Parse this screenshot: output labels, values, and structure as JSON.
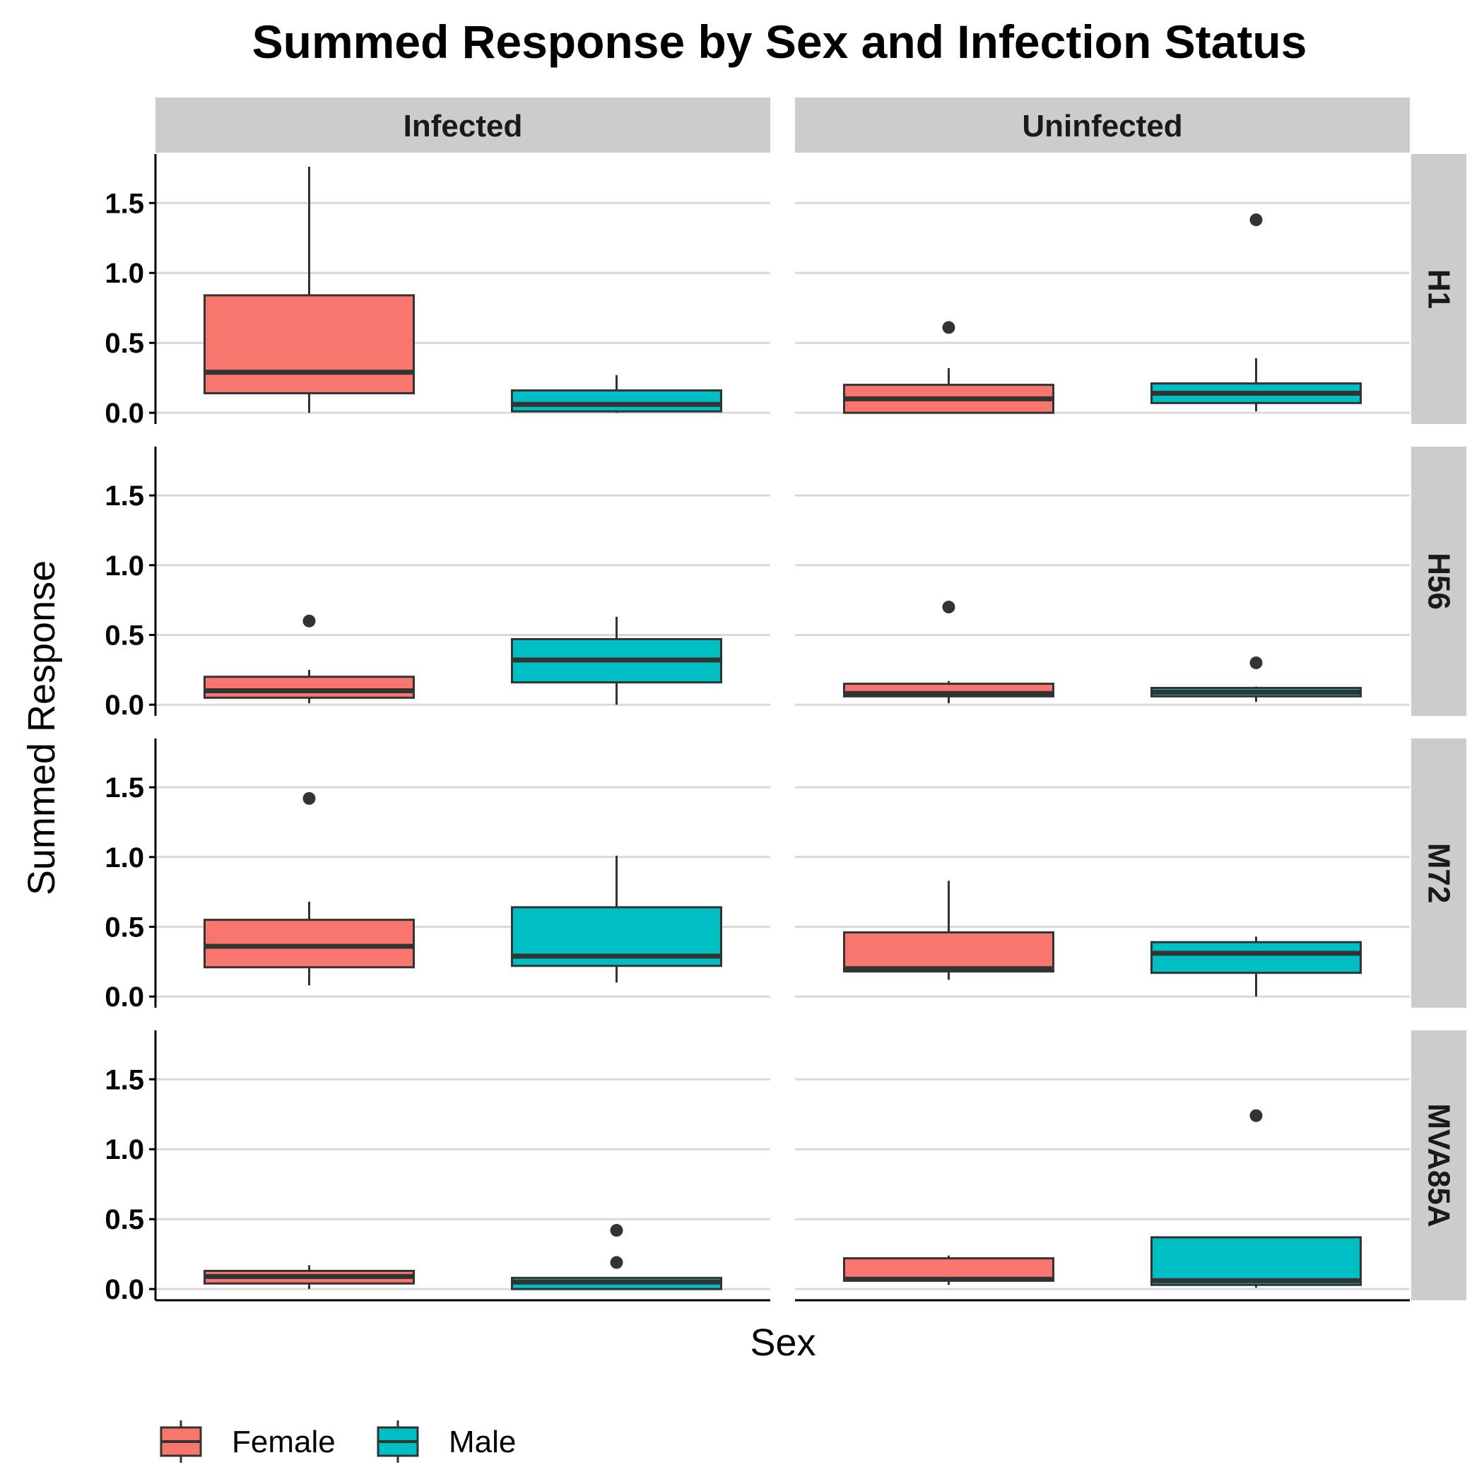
{
  "chart_data": {
    "type": "boxplot",
    "title": "Summed Response by Sex and Infection Status",
    "xlabel": "Sex",
    "ylabel": "Summed Response",
    "ylim": [
      -0.08,
      1.85
    ],
    "yticks": [
      0.0,
      0.5,
      1.0,
      1.5
    ],
    "ytick_labels": [
      "0.0",
      "0.5",
      "1.0",
      "1.5"
    ],
    "grid": "horizontal major",
    "legend_position": "bottom-left",
    "col_facets": [
      "Infected",
      "Uninfected"
    ],
    "row_facets": [
      "H1",
      "H56",
      "M72",
      "MVA85A"
    ],
    "categories": [
      "Female",
      "Male"
    ],
    "series": [
      {
        "name": "Female",
        "color": "#F8766D"
      },
      {
        "name": "Male",
        "color": "#00BFC4"
      }
    ],
    "panels": [
      {
        "row": "H1",
        "col": "Infected",
        "boxes": [
          {
            "sex": "Female",
            "whisker_low": 0.0,
            "q1": 0.14,
            "median": 0.29,
            "q3": 0.84,
            "whisker_high": 1.76,
            "outliers": []
          },
          {
            "sex": "Male",
            "whisker_low": 0.0,
            "q1": 0.01,
            "median": 0.06,
            "q3": 0.16,
            "whisker_high": 0.27,
            "outliers": []
          }
        ]
      },
      {
        "row": "H1",
        "col": "Uninfected",
        "boxes": [
          {
            "sex": "Female",
            "whisker_low": 0.0,
            "q1": 0.0,
            "median": 0.1,
            "q3": 0.2,
            "whisker_high": 0.32,
            "outliers": [
              0.61
            ]
          },
          {
            "sex": "Male",
            "whisker_low": 0.01,
            "q1": 0.07,
            "median": 0.14,
            "q3": 0.21,
            "whisker_high": 0.39,
            "outliers": [
              1.38
            ]
          }
        ]
      },
      {
        "row": "H56",
        "col": "Infected",
        "boxes": [
          {
            "sex": "Female",
            "whisker_low": 0.01,
            "q1": 0.05,
            "median": 0.1,
            "q3": 0.2,
            "whisker_high": 0.25,
            "outliers": [
              0.6
            ]
          },
          {
            "sex": "Male",
            "whisker_low": 0.0,
            "q1": 0.16,
            "median": 0.32,
            "q3": 0.47,
            "whisker_high": 0.63,
            "outliers": []
          }
        ]
      },
      {
        "row": "H56",
        "col": "Uninfected",
        "boxes": [
          {
            "sex": "Female",
            "whisker_low": 0.01,
            "q1": 0.06,
            "median": 0.08,
            "q3": 0.15,
            "whisker_high": 0.17,
            "outliers": [
              0.7
            ]
          },
          {
            "sex": "Male",
            "whisker_low": 0.02,
            "q1": 0.06,
            "median": 0.09,
            "q3": 0.12,
            "whisker_high": 0.13,
            "outliers": [
              0.3
            ]
          }
        ]
      },
      {
        "row": "M72",
        "col": "Infected",
        "boxes": [
          {
            "sex": "Female",
            "whisker_low": 0.08,
            "q1": 0.21,
            "median": 0.36,
            "q3": 0.55,
            "whisker_high": 0.68,
            "outliers": [
              1.42
            ]
          },
          {
            "sex": "Male",
            "whisker_low": 0.1,
            "q1": 0.22,
            "median": 0.29,
            "q3": 0.64,
            "whisker_high": 1.01,
            "outliers": []
          }
        ]
      },
      {
        "row": "M72",
        "col": "Uninfected",
        "boxes": [
          {
            "sex": "Female",
            "whisker_low": 0.12,
            "q1": 0.18,
            "median": 0.2,
            "q3": 0.46,
            "whisker_high": 0.83,
            "outliers": []
          },
          {
            "sex": "Male",
            "whisker_low": 0.0,
            "q1": 0.17,
            "median": 0.31,
            "q3": 0.39,
            "whisker_high": 0.43,
            "outliers": []
          }
        ]
      },
      {
        "row": "MVA85A",
        "col": "Infected",
        "boxes": [
          {
            "sex": "Female",
            "whisker_low": 0.0,
            "q1": 0.04,
            "median": 0.09,
            "q3": 0.13,
            "whisker_high": 0.17,
            "outliers": []
          },
          {
            "sex": "Male",
            "whisker_low": 0.0,
            "q1": 0.0,
            "median": 0.05,
            "q3": 0.08,
            "whisker_high": 0.08,
            "outliers": [
              0.19,
              0.42
            ]
          }
        ]
      },
      {
        "row": "MVA85A",
        "col": "Uninfected",
        "boxes": [
          {
            "sex": "Female",
            "whisker_low": 0.03,
            "q1": 0.06,
            "median": 0.07,
            "q3": 0.22,
            "whisker_high": 0.24,
            "outliers": []
          },
          {
            "sex": "Male",
            "whisker_low": 0.01,
            "q1": 0.03,
            "median": 0.06,
            "q3": 0.37,
            "whisker_high": 0.37,
            "outliers": [
              1.24
            ]
          }
        ]
      }
    ]
  }
}
